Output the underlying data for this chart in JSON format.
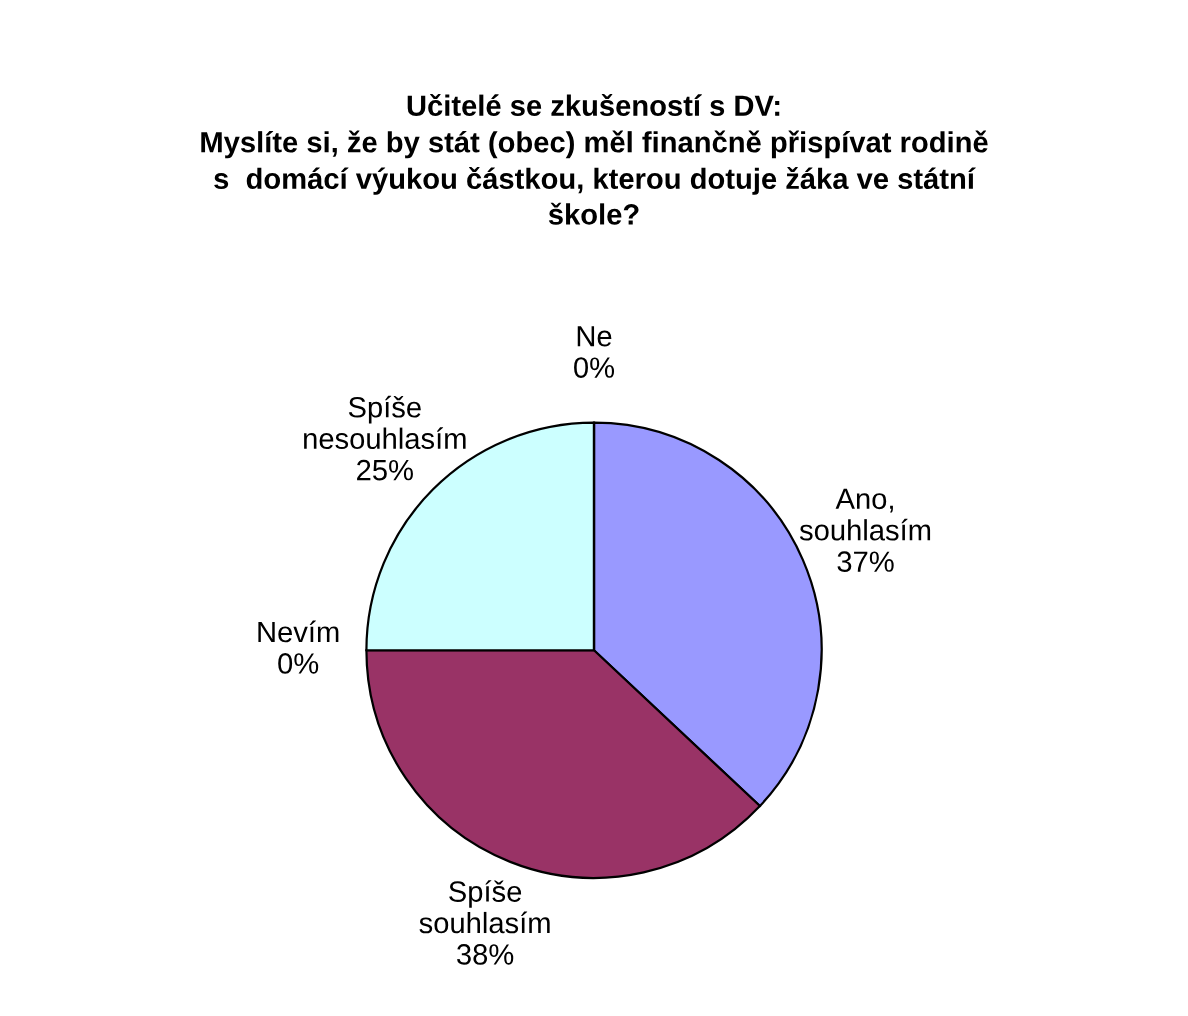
{
  "chart_data": {
    "type": "pie",
    "title": "Učitelé se zkušeností s DV:\nMyslíte si, že by stát (obec) měl finančně přispívat rodině\ns  domácí výukou částkou, kterou dotuje žáka ve státní\nškole?",
    "categories": [
      "Ano,\nsouhlasím",
      "Spíše\nsouhlasím",
      "Nevím",
      "Spíše\nnesouhlasím",
      "Ne"
    ],
    "values": [
      37,
      38,
      0,
      25,
      0
    ],
    "colors": [
      "#9999ff",
      "#993366",
      "#ffffcc",
      "#ccffff",
      "#660066"
    ],
    "value_labels": [
      "37%",
      "38%",
      "0%",
      "25%",
      "0%"
    ]
  }
}
